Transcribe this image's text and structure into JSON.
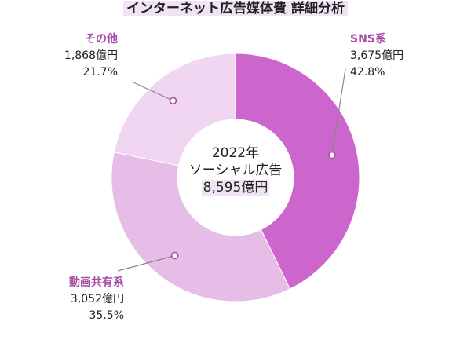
{
  "chart_data": {
    "type": "pie",
    "title": "インターネット広告媒体費 詳細分析",
    "center_text": {
      "year": "2022年",
      "label": "ソーシャル広告",
      "total": "8,595億円"
    },
    "segments": [
      {
        "name": "SNS系",
        "value_label": "3,675億円",
        "value": 3675,
        "percent_label": "42.8%",
        "color": "#cc66cc"
      },
      {
        "name": "動画共有系",
        "value_label": "3,052億円",
        "value": 3052,
        "percent_label": "35.5%",
        "color": "#e6bde6"
      },
      {
        "name": "その他",
        "value_label": "1,868億円",
        "value": 1868,
        "percent_label": "21.7%",
        "color": "#f1d6f1"
      }
    ],
    "name_color": "#a64ca6",
    "leader_color": "#888888"
  }
}
